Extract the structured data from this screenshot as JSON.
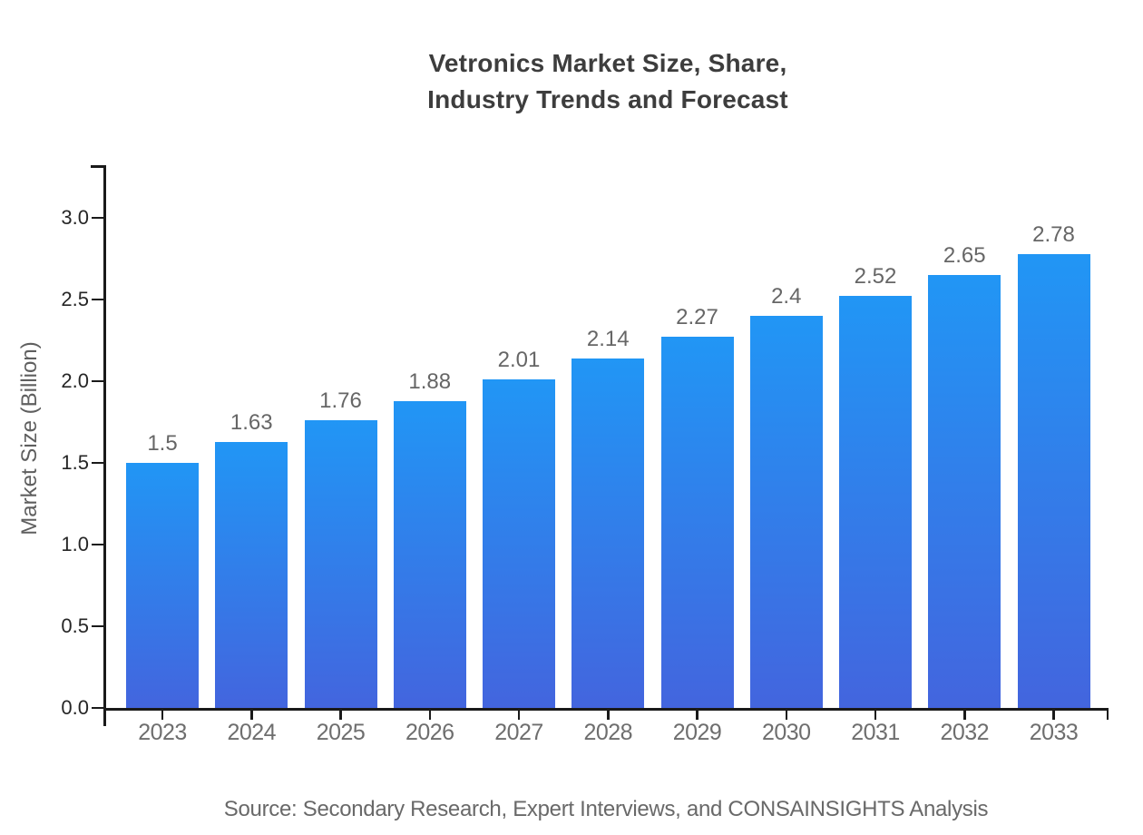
{
  "chart_data": {
    "type": "bar",
    "title": "Vetronics Market Size, Share, Industry Trends and Forecast",
    "categories": [
      "2023",
      "2024",
      "2025",
      "2026",
      "2027",
      "2028",
      "2029",
      "2030",
      "2031",
      "2032",
      "2033"
    ],
    "values": [
      1.5,
      1.63,
      1.76,
      1.88,
      2.01,
      2.14,
      2.27,
      2.4,
      2.52,
      2.65,
      2.78
    ],
    "value_labels": [
      "1.5",
      "1.63",
      "1.76",
      "1.88",
      "2.01",
      "2.14",
      "2.27",
      "2.4",
      "2.52",
      "2.65",
      "2.78"
    ],
    "xlabel": "",
    "ylabel": "Market Size (Billion)",
    "yticks": [
      0.0,
      0.5,
      1.0,
      1.5,
      2.0,
      2.5,
      3.0
    ],
    "ytick_labels": [
      "0.0",
      "0.5",
      "1.0",
      "1.5",
      "2.0",
      "2.5",
      "3.0"
    ],
    "ylim": [
      0,
      3.33
    ],
    "grid": false,
    "legend": false,
    "bar_gradient_top": "#2196f5",
    "bar_gradient_bottom": "#4365de"
  },
  "footer": {
    "source": "Source: Secondary Research, Expert Interviews, and CONSAINSIGHTS Analysis"
  },
  "colors": {
    "background": "#ffffff",
    "title": "#3d3d3d",
    "axis": "#1a1a1a",
    "y_tick_label": "#262626",
    "x_tick_label": "#6e6e6e",
    "data_label": "#666666",
    "axis_title": "#5f5f5f",
    "source": "#696969"
  }
}
